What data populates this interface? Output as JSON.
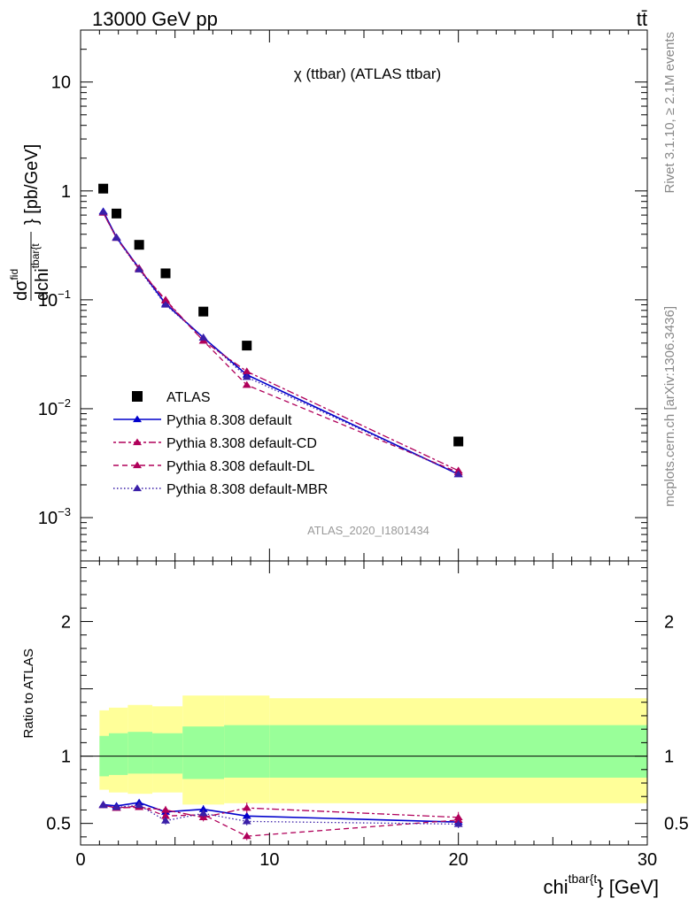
{
  "header": {
    "left": "13000 GeV pp",
    "right": "tt̄",
    "side_top": "Rivet 3.1.10, ≥ 2.1M events",
    "side_bottom": "mcplots.cern.ch [arXiv:1306.3436]"
  },
  "chart_data": {
    "type": "scatter",
    "title": "χ (ttbar) (ATLAS ttbar)",
    "watermark": "ATLAS_2020_I1801434",
    "xlabel": "chi^{tbar{t}} [GeV]",
    "xlabel_main": "chi",
    "xlabel_sup": "tbar{t",
    "xlabel_tail": "} [GeV]",
    "ylabel_main": "dσ^{fid}/dchi^{tbar{t}} [pb/GeV]",
    "ylabel_num": "dσ",
    "ylabel_num_sup": "fid",
    "ylabel_den": "dchi",
    "ylabel_den_sup": "tbar{t",
    "ylabel_tail": "} [pb/GeV]",
    "ylabel_ratio": "Ratio to ATLAS",
    "xlim": [
      0,
      30
    ],
    "ylim_main": [
      0.0004,
      30
    ],
    "ylim_ratio": [
      0.34,
      2.45
    ],
    "log_y_main": true,
    "x_ticks": [
      0,
      10,
      20,
      30
    ],
    "x_tick_labels": [
      "0",
      "10",
      "20",
      "30"
    ],
    "y_ticks_main": [
      {
        "value": 10,
        "base": "10",
        "exp": ""
      },
      {
        "value": 1,
        "base": "1",
        "exp": ""
      },
      {
        "value": 0.1,
        "base": "10",
        "exp": "−1"
      },
      {
        "value": 0.01,
        "base": "10",
        "exp": "−2"
      },
      {
        "value": 0.001,
        "base": "10",
        "exp": "−3"
      }
    ],
    "y_ticks_ratio": [
      {
        "value": 2,
        "label": "2"
      },
      {
        "value": 1,
        "label": "1"
      },
      {
        "value": 0.5,
        "label": "0.5"
      }
    ],
    "bins": [
      {
        "lo": 1.0,
        "hi": 1.5
      },
      {
        "lo": 1.5,
        "hi": 2.5
      },
      {
        "lo": 2.5,
        "hi": 3.8
      },
      {
        "lo": 3.8,
        "hi": 5.4
      },
      {
        "lo": 5.4,
        "hi": 7.6
      },
      {
        "lo": 7.6,
        "hi": 10.0
      },
      {
        "lo": 10.0,
        "hi": 30.0
      }
    ],
    "band_inner": [
      [
        0.85,
        1.15
      ],
      [
        0.86,
        1.17
      ],
      [
        0.87,
        1.18
      ],
      [
        0.87,
        1.17
      ],
      [
        0.83,
        1.22
      ],
      [
        0.84,
        1.23
      ],
      [
        0.84,
        1.23
      ]
    ],
    "band_outer": [
      [
        0.75,
        1.34
      ],
      [
        0.73,
        1.36
      ],
      [
        0.72,
        1.38
      ],
      [
        0.73,
        1.37
      ],
      [
        0.64,
        1.45
      ],
      [
        0.65,
        1.45
      ],
      [
        0.65,
        1.43
      ]
    ],
    "data": {
      "name": "ATLAS",
      "x": [
        1.2,
        1.9,
        3.1,
        4.5,
        6.5,
        8.8,
        20.0
      ],
      "y": [
        1.05,
        0.62,
        0.32,
        0.175,
        0.078,
        0.038,
        0.005
      ]
    },
    "series": [
      {
        "name": "Pythia 8.308 default",
        "color": "#0000cc",
        "dash": "",
        "y": [
          0.65,
          0.375,
          0.195,
          0.092,
          0.045,
          0.0205,
          0.0025
        ],
        "ratio": [
          0.64,
          0.63,
          0.655,
          0.585,
          0.605,
          0.555,
          0.51
        ],
        "err": [
          0.02,
          0.02,
          0.02,
          0.03,
          0.03,
          0.03,
          0.03
        ]
      },
      {
        "name": "Pythia 8.308 default-CD",
        "color": "#b0005a",
        "dash": "3,3,8,3",
        "y": [
          0.63,
          0.37,
          0.19,
          0.1,
          0.042,
          0.022,
          0.0027
        ],
        "ratio": [
          0.635,
          0.615,
          0.62,
          0.6,
          0.545,
          0.615,
          0.545
        ],
        "err": [
          0.02,
          0.02,
          0.02,
          0.03,
          0.03,
          0.04,
          0.04
        ]
      },
      {
        "name": "Pythia 8.308 default-DL",
        "color": "#b0005a",
        "dash": "6,4",
        "y": [
          0.63,
          0.37,
          0.195,
          0.098,
          0.042,
          0.0165,
          0.0026
        ],
        "ratio": [
          0.635,
          0.615,
          0.63,
          0.555,
          0.565,
          0.405,
          0.525
        ],
        "err": [
          0.02,
          0.02,
          0.02,
          0.03,
          0.03,
          0.03,
          0.04
        ]
      },
      {
        "name": "Pythia 8.308 default-MBR",
        "color": "#3a1fa8",
        "dash": "1.5,2.5",
        "y": [
          0.64,
          0.37,
          0.19,
          0.09,
          0.045,
          0.0195,
          0.0025
        ],
        "ratio": [
          0.635,
          0.62,
          0.635,
          0.52,
          0.575,
          0.515,
          0.495
        ],
        "err": [
          0.02,
          0.02,
          0.02,
          0.03,
          0.03,
          0.03,
          0.03
        ]
      }
    ],
    "legend_placement": "bottom-left"
  }
}
